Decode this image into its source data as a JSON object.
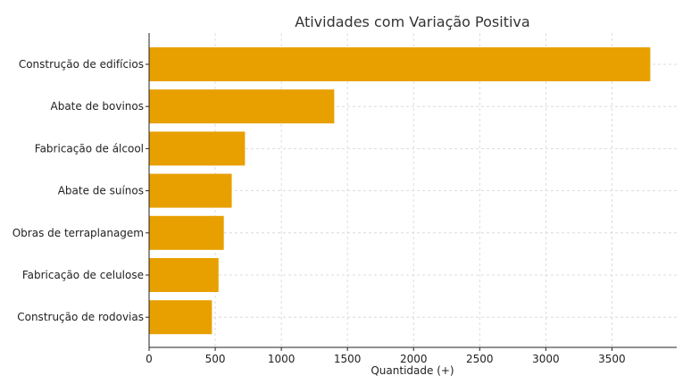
{
  "chart_data": {
    "type": "bar",
    "orientation": "horizontal",
    "title": "Atividades com Variação Positiva",
    "xlabel": "Quantidade (+)",
    "ylabel": "",
    "categories": [
      "Construção de edifícios",
      "Abate de bovinos",
      "Fabricação de álcool",
      "Abate de suínos",
      "Obras de terraplanagem",
      "Fabricação de celulose",
      "Construção de rodovias"
    ],
    "values": [
      3790,
      1400,
      725,
      625,
      565,
      525,
      475
    ],
    "xlim": [
      0,
      3990
    ],
    "xticks": [
      0,
      500,
      1000,
      1500,
      2000,
      2500,
      3000,
      3500
    ],
    "grid": true,
    "bar_color": "#E8A000"
  }
}
